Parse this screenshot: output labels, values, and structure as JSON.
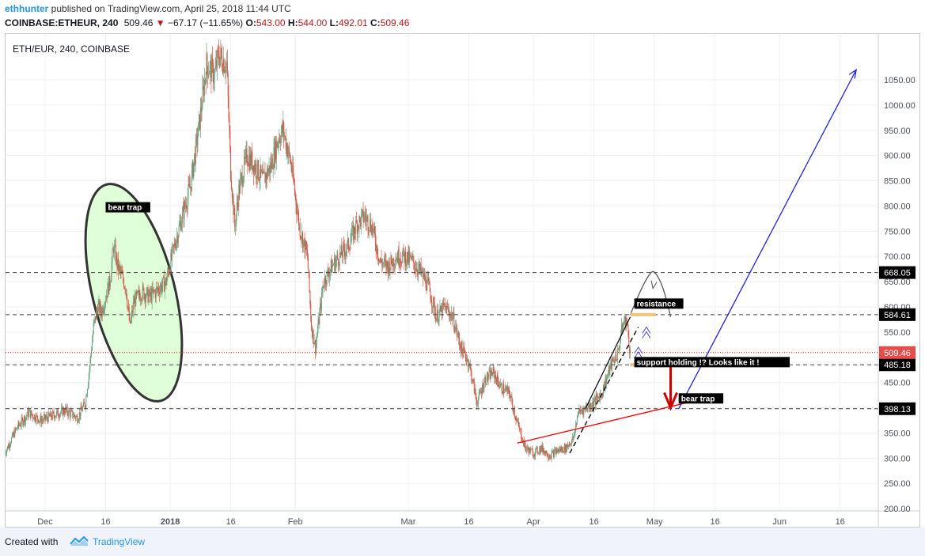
{
  "header": {
    "author": "ethhunter",
    "published_text": " published on TradingView.com, April 25, 2018 11:44 UTC",
    "symbol": "COINBASE:ETHEUR, 240",
    "last": "509.46",
    "change_arrow": "▼",
    "change": "−67.17 (−11.65%)",
    "o_label": "O:",
    "o_value": "543.00",
    "h_label": "H:",
    "h_value": "544.00",
    "l_label": "L:",
    "l_value": "492.01",
    "c_label": "C:",
    "c_value": "509.46"
  },
  "footer": {
    "created_with": "Created with",
    "brand": "TradingView"
  },
  "colors": {
    "up": "#6ba583",
    "down": "#d75442",
    "brand": "#2196f3",
    "price_line": "#ff0000",
    "ellipse_fill": "#dfffd9",
    "projection": "#2222dd"
  },
  "chart_data": {
    "type": "candlestick",
    "title": "ETH/EUR, 240, COINBASE",
    "y_ticks": [
      200,
      250,
      300,
      350,
      400,
      450,
      500,
      550,
      600,
      650,
      700,
      750,
      800,
      850,
      900,
      950,
      1000,
      1050
    ],
    "y_tick_labels": [
      "200.00",
      "250.00",
      "300.00",
      "350.00",
      "400.00",
      "450.00",
      "500.00",
      "550.00",
      "600.00",
      "650.00",
      "700.00",
      "750.00",
      "800.00",
      "850.00",
      "900.00",
      "950.00",
      "1000.00",
      "1050.00"
    ],
    "x_ticks": [
      {
        "label": "Dec",
        "date": "2017-12-01"
      },
      {
        "label": "16",
        "date": "2017-12-16"
      },
      {
        "label": "2018",
        "date": "2018-01-01"
      },
      {
        "label": "16",
        "date": "2018-01-16"
      },
      {
        "label": "Feb",
        "date": "2018-02-01"
      },
      {
        "label": "Mar",
        "date": "2018-03-01"
      },
      {
        "label": "16",
        "date": "2018-03-16"
      },
      {
        "label": "Apr",
        "date": "2018-04-01"
      },
      {
        "label": "16",
        "date": "2018-04-16"
      },
      {
        "label": "May",
        "date": "2018-05-01"
      },
      {
        "label": "16",
        "date": "2018-05-16"
      },
      {
        "label": "Jun",
        "date": "2018-06-01"
      },
      {
        "label": "16",
        "date": "2018-06-16"
      }
    ],
    "price_path": [
      [
        "2017-11-21",
        310
      ],
      [
        "2017-11-24",
        360
      ],
      [
        "2017-11-27",
        390
      ],
      [
        "2017-11-30",
        375
      ],
      [
        "2017-12-03",
        385
      ],
      [
        "2017-12-06",
        395
      ],
      [
        "2017-12-09",
        380
      ],
      [
        "2017-12-11",
        410
      ],
      [
        "2017-12-12",
        480
      ],
      [
        "2017-12-13",
        560
      ],
      [
        "2017-12-14",
        600
      ],
      [
        "2017-12-15",
        590
      ],
      [
        "2017-12-17",
        650
      ],
      [
        "2017-12-18",
        720
      ],
      [
        "2017-12-19",
        680
      ],
      [
        "2017-12-21",
        640
      ],
      [
        "2017-12-22",
        560
      ],
      [
        "2017-12-23",
        610
      ],
      [
        "2017-12-25",
        630
      ],
      [
        "2017-12-27",
        620
      ],
      [
        "2017-12-29",
        635
      ],
      [
        "2017-12-31",
        650
      ],
      [
        "2018-01-02",
        720
      ],
      [
        "2018-01-04",
        780
      ],
      [
        "2018-01-06",
        840
      ],
      [
        "2018-01-08",
        950
      ],
      [
        "2018-01-10",
        1080
      ],
      [
        "2018-01-12",
        1060
      ],
      [
        "2018-01-13",
        1100
      ],
      [
        "2018-01-15",
        1080
      ],
      [
        "2018-01-16",
        870
      ],
      [
        "2018-01-17",
        760
      ],
      [
        "2018-01-18",
        830
      ],
      [
        "2018-01-20",
        900
      ],
      [
        "2018-01-22",
        880
      ],
      [
        "2018-01-24",
        850
      ],
      [
        "2018-01-26",
        880
      ],
      [
        "2018-01-28",
        940
      ],
      [
        "2018-01-29",
        950
      ],
      [
        "2018-01-31",
        880
      ],
      [
        "2018-02-02",
        760
      ],
      [
        "2018-02-04",
        700
      ],
      [
        "2018-02-05",
        560
      ],
      [
        "2018-02-06",
        520
      ],
      [
        "2018-02-08",
        650
      ],
      [
        "2018-02-10",
        680
      ],
      [
        "2018-02-12",
        700
      ],
      [
        "2018-02-14",
        720
      ],
      [
        "2018-02-16",
        760
      ],
      [
        "2018-02-18",
        780
      ],
      [
        "2018-02-20",
        760
      ],
      [
        "2018-02-22",
        690
      ],
      [
        "2018-02-24",
        680
      ],
      [
        "2018-02-26",
        700
      ],
      [
        "2018-02-28",
        700
      ],
      [
        "2018-03-02",
        690
      ],
      [
        "2018-03-04",
        670
      ],
      [
        "2018-03-06",
        640
      ],
      [
        "2018-03-08",
        580
      ],
      [
        "2018-03-10",
        600
      ],
      [
        "2018-03-12",
        580
      ],
      [
        "2018-03-14",
        520
      ],
      [
        "2018-03-16",
        490
      ],
      [
        "2018-03-18",
        410
      ],
      [
        "2018-03-20",
        455
      ],
      [
        "2018-03-22",
        470
      ],
      [
        "2018-03-24",
        440
      ],
      [
        "2018-03-26",
        430
      ],
      [
        "2018-03-28",
        370
      ],
      [
        "2018-03-30",
        320
      ],
      [
        "2018-04-01",
        310
      ],
      [
        "2018-04-03",
        320
      ],
      [
        "2018-04-05",
        305
      ],
      [
        "2018-04-07",
        315
      ],
      [
        "2018-04-09",
        320
      ],
      [
        "2018-04-11",
        340
      ],
      [
        "2018-04-12",
        390
      ],
      [
        "2018-04-14",
        400
      ],
      [
        "2018-04-16",
        410
      ],
      [
        "2018-04-18",
        430
      ],
      [
        "2018-04-20",
        480
      ],
      [
        "2018-04-22",
        510
      ],
      [
        "2018-04-23",
        560
      ],
      [
        "2018-04-24",
        577
      ],
      [
        "2018-04-25",
        509
      ]
    ],
    "horizontal_levels": [
      {
        "value": 668.05,
        "label": "668.05"
      },
      {
        "value": 584.61,
        "label": "584.61"
      },
      {
        "value": 485.18,
        "label": "485.18"
      },
      {
        "value": 398.13,
        "label": "398.13"
      }
    ],
    "last_price": {
      "value": 509.46,
      "label": "509.46"
    },
    "annotations": [
      {
        "text": "bear trap",
        "date": "2017-12-16",
        "value": 792
      },
      {
        "text": "resistance",
        "date": "2018-04-26",
        "value": 601
      },
      {
        "text": "support holding !? Looks like it !",
        "date": "2018-04-26",
        "value": 485
      },
      {
        "text": "bear trap",
        "date": "2018-05-07",
        "value": 413
      }
    ],
    "trendlines": [
      {
        "color": "red",
        "from": [
          "2018-03-28",
          330
        ],
        "to": [
          "2018-05-09",
          410
        ]
      },
      {
        "color": "blue",
        "from": [
          "2018-05-07",
          398
        ],
        "to": [
          "2018-06-20",
          1070
        ]
      },
      {
        "color": "black-dashed",
        "from": [
          "2018-04-10",
          310
        ],
        "to": [
          "2018-04-27",
          560
        ]
      }
    ]
  }
}
